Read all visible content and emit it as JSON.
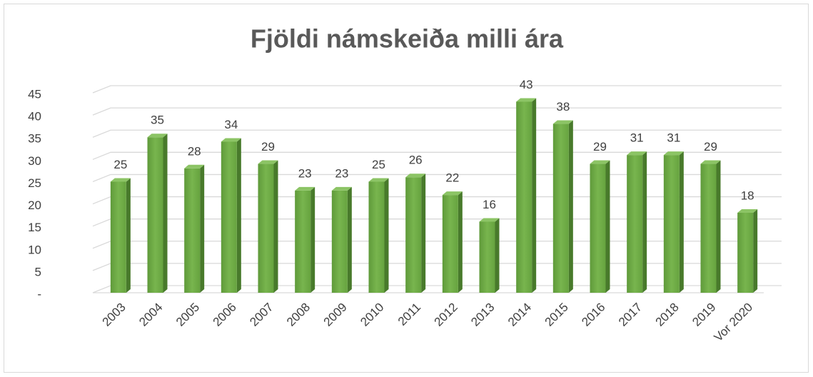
{
  "chart_data": {
    "type": "bar3d",
    "title": "Fjöldi námskeiða milli ára",
    "categories": [
      "2003",
      "2004",
      "2005",
      "2006",
      "2007",
      "2008",
      "2009",
      "2010",
      "2011",
      "2012",
      "2013",
      "2014",
      "2015",
      "2016",
      "2017",
      "2018",
      "2019",
      "Vor 2020"
    ],
    "values": [
      25,
      35,
      28,
      34,
      29,
      23,
      23,
      25,
      26,
      22,
      16,
      43,
      38,
      29,
      31,
      31,
      29,
      18
    ],
    "color": "#70ad47",
    "ylim": [
      0,
      45
    ],
    "yticks": [
      {
        "value": 0,
        "label": "-"
      },
      5,
      10,
      15,
      20,
      25,
      30,
      35,
      40,
      45
    ],
    "grid": true
  }
}
